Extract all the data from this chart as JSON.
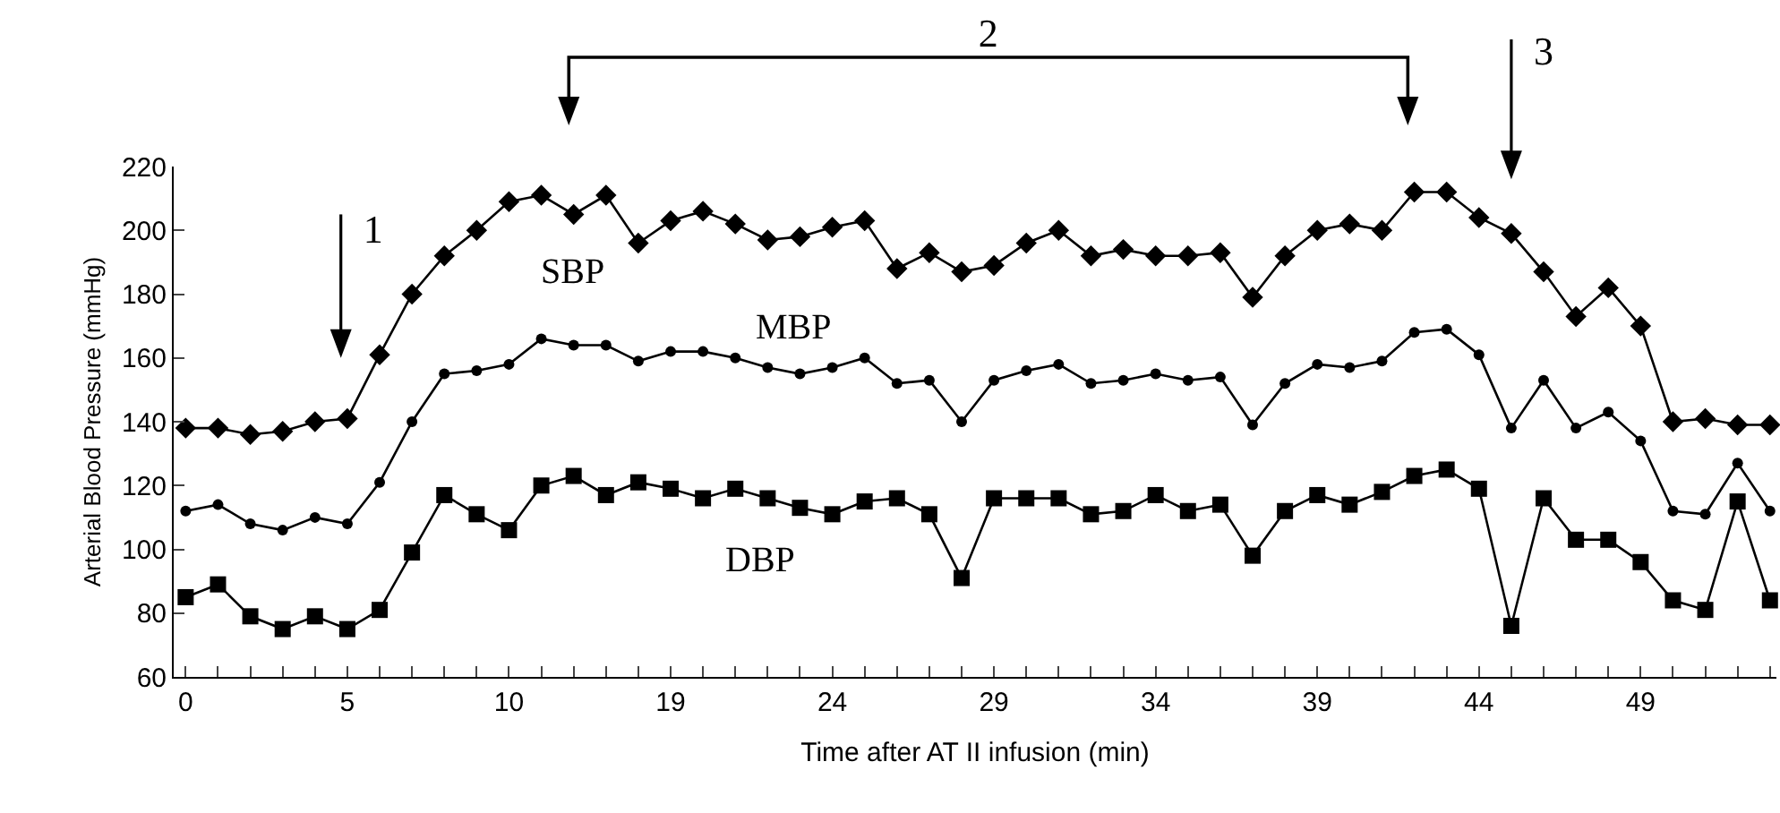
{
  "chart_data": {
    "type": "line",
    "xlabel": "Time after AT II infusion (min)",
    "ylabel": "Arterial Blood Pressure (mmHg)",
    "categories": [
      "0",
      null,
      null,
      null,
      null,
      "5",
      null,
      null,
      null,
      null,
      "10",
      null,
      null,
      null,
      null,
      "19",
      null,
      null,
      null,
      null,
      "24",
      null,
      null,
      null,
      null,
      "29",
      null,
      null,
      null,
      null,
      "34",
      null,
      null,
      null,
      null,
      "39",
      null,
      null,
      null,
      null,
      "44",
      null,
      null,
      null,
      null,
      "49",
      null,
      null,
      null,
      null
    ],
    "series": [
      {
        "name": "SBP",
        "color": "#000000",
        "marker": "diamond",
        "values": [
          138,
          138,
          136,
          137,
          140,
          141,
          161,
          180,
          192,
          200,
          209,
          211,
          205,
          211,
          196,
          203,
          206,
          202,
          197,
          198,
          201,
          203,
          188,
          193,
          187,
          189,
          196,
          200,
          192,
          194,
          192,
          192,
          193,
          179,
          192,
          200,
          202,
          200,
          212,
          212,
          204,
          199,
          187,
          173,
          182,
          170,
          140,
          141,
          139,
          139
        ]
      },
      {
        "name": "MBP",
        "color": "#000000",
        "marker": "circle",
        "values": [
          112,
          114,
          108,
          106,
          110,
          108,
          121,
          140,
          155,
          156,
          158,
          166,
          164,
          164,
          159,
          162,
          162,
          160,
          157,
          155,
          157,
          160,
          152,
          153,
          140,
          153,
          156,
          158,
          152,
          153,
          155,
          153,
          154,
          139,
          152,
          158,
          157,
          159,
          168,
          169,
          161,
          138,
          153,
          138,
          143,
          134,
          112,
          111,
          127,
          112
        ]
      },
      {
        "name": "DBP",
        "color": "#000000",
        "marker": "square",
        "values": [
          85,
          89,
          79,
          75,
          79,
          75,
          81,
          99,
          117,
          111,
          106,
          120,
          123,
          117,
          121,
          119,
          116,
          119,
          116,
          113,
          111,
          115,
          116,
          111,
          91,
          116,
          116,
          116,
          111,
          112,
          117,
          112,
          114,
          98,
          112,
          117,
          114,
          118,
          123,
          125,
          119,
          76,
          116,
          103,
          103,
          96,
          84,
          81,
          115,
          84
        ]
      }
    ],
    "ylim": [
      60,
      220
    ],
    "yticks": [
      60,
      80,
      100,
      120,
      140,
      160,
      180,
      200,
      220
    ],
    "annotations": [
      "1",
      "2",
      "3"
    ],
    "line_style": "solid",
    "grid": false,
    "legend": false
  }
}
